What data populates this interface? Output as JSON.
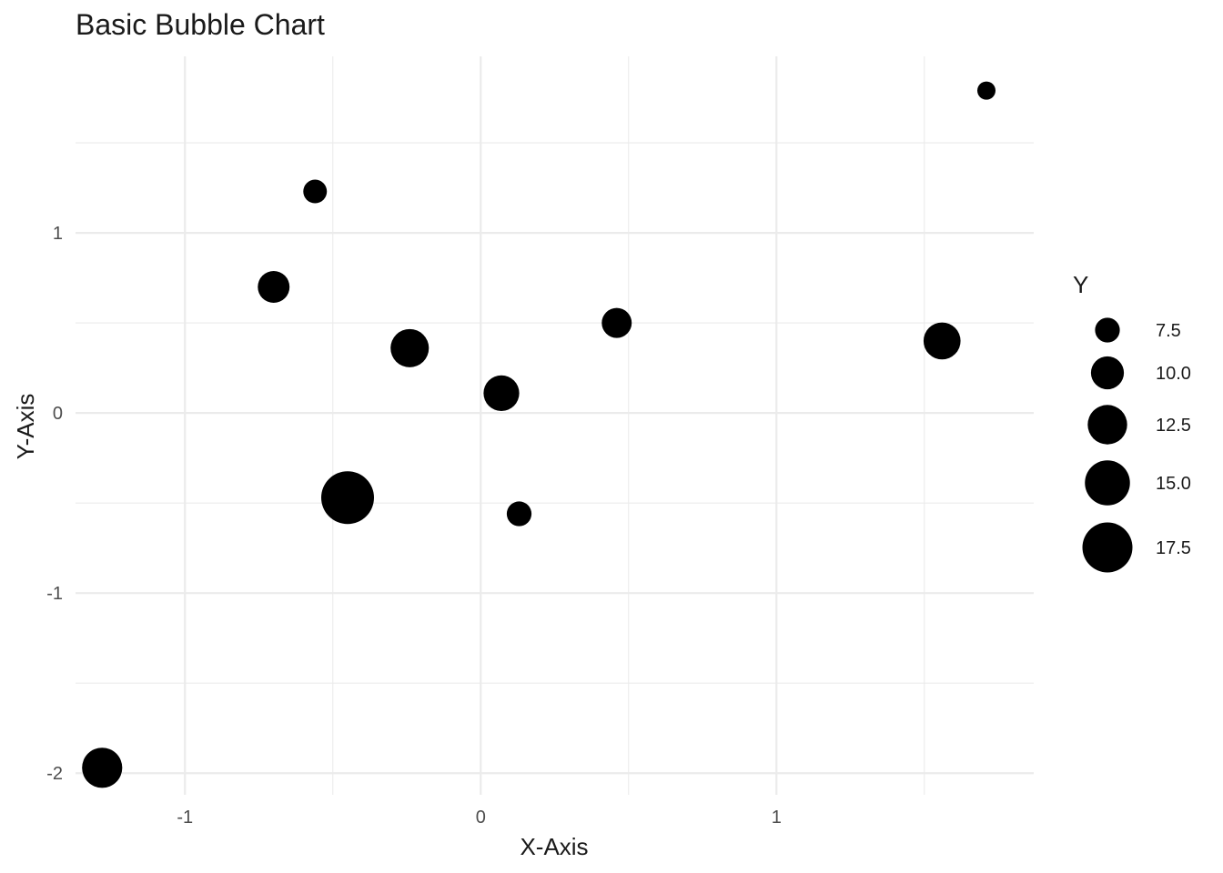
{
  "chart_data": {
    "type": "scatter",
    "title": "Basic Bubble Chart",
    "xlabel": "X-Axis",
    "ylabel": "Y-Axis",
    "xlim": [
      -1.37,
      1.87
    ],
    "ylim": [
      -2.12,
      1.98
    ],
    "x_ticks": [
      -1,
      0,
      1
    ],
    "x_tick_labels": [
      "-1",
      "0",
      "1"
    ],
    "y_ticks": [
      -2,
      -1,
      0,
      1
    ],
    "y_tick_labels": [
      "-2",
      "-1",
      "0",
      "1"
    ],
    "grid": true,
    "size_variable": "Y",
    "legend": {
      "title": "Y",
      "position": "right",
      "values": [
        7.5,
        10.0,
        12.5,
        15.0,
        17.5
      ],
      "labels": [
        "7.5",
        "10.0",
        "12.5",
        "15.0",
        "17.5"
      ]
    },
    "points": [
      {
        "x": -1.28,
        "y": -1.97,
        "size": 12.8
      },
      {
        "x": -0.7,
        "y": 0.7,
        "size": 9.6
      },
      {
        "x": -0.56,
        "y": 1.23,
        "size": 7.2
      },
      {
        "x": -0.45,
        "y": -0.47,
        "size": 19.0
      },
      {
        "x": -0.24,
        "y": 0.36,
        "size": 12.0
      },
      {
        "x": 0.07,
        "y": 0.11,
        "size": 11.0
      },
      {
        "x": 0.13,
        "y": -0.56,
        "size": 7.5
      },
      {
        "x": 0.46,
        "y": 0.5,
        "size": 9.0
      },
      {
        "x": 1.56,
        "y": 0.4,
        "size": 11.5
      },
      {
        "x": 1.71,
        "y": 1.79,
        "size": 6.0
      }
    ],
    "point_color": "#000000",
    "grid_color": "#ebebeb"
  }
}
